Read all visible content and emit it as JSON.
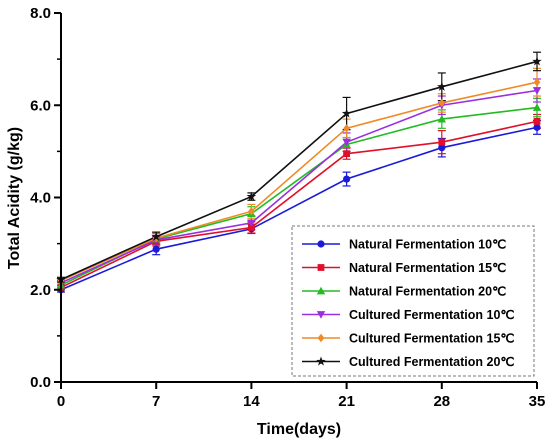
{
  "chart_data": {
    "type": "line",
    "xlabel": "Time(days)",
    "ylabel": "Total Acidity (g/kg)",
    "x": [
      0,
      7,
      14,
      21,
      28,
      35
    ],
    "x_tick_labels": [
      "0",
      "7",
      "14",
      "21",
      "28",
      "35"
    ],
    "xlim": [
      0,
      35
    ],
    "ylim": [
      0,
      8
    ],
    "y_tick_labels": [
      "0.0",
      "2.0",
      "4.0",
      "6.0",
      "8.0"
    ],
    "y_tick_values": [
      0,
      2,
      4,
      6,
      8
    ],
    "grid": false,
    "legend_position": "bottom-right",
    "series": [
      {
        "name": "Natural Fermentation 10℃",
        "color": "#1a1adb",
        "marker": "circle",
        "values": [
          2.0,
          2.88,
          3.32,
          4.4,
          5.08,
          5.52
        ],
        "errors": [
          0.05,
          0.12,
          0.1,
          0.15,
          0.2,
          0.15
        ]
      },
      {
        "name": "Natural Fermentation 15℃",
        "color": "#e0102a",
        "marker": "square",
        "values": [
          2.05,
          3.05,
          3.35,
          4.95,
          5.2,
          5.65
        ],
        "errors": [
          0.05,
          0.1,
          0.12,
          0.12,
          0.25,
          0.15
        ]
      },
      {
        "name": "Natural Fermentation 20℃",
        "color": "#22bb22",
        "marker": "triangle-up",
        "values": [
          2.1,
          3.1,
          3.65,
          5.15,
          5.7,
          5.95
        ],
        "errors": [
          0.05,
          0.12,
          0.15,
          0.15,
          0.2,
          0.2
        ]
      },
      {
        "name": "Cultured Fermentation 10℃",
        "color": "#9a2ee0",
        "marker": "triangle-down",
        "values": [
          2.15,
          3.08,
          3.45,
          5.2,
          6.0,
          6.32
        ],
        "errors": [
          0.05,
          0.1,
          0.15,
          0.2,
          0.2,
          0.25
        ]
      },
      {
        "name": "Cultured Fermentation 15℃",
        "color": "#f08a24",
        "marker": "diamond",
        "values": [
          2.2,
          3.12,
          3.7,
          5.5,
          6.05,
          6.5
        ],
        "errors": [
          0.05,
          0.12,
          0.15,
          0.2,
          0.2,
          0.3
        ]
      },
      {
        "name": "Cultured Fermentation 20℃",
        "color": "#111111",
        "marker": "star",
        "values": [
          2.22,
          3.15,
          4.02,
          5.82,
          6.4,
          6.95
        ],
        "errors": [
          0.05,
          0.1,
          0.08,
          0.35,
          0.3,
          0.2
        ]
      }
    ]
  }
}
